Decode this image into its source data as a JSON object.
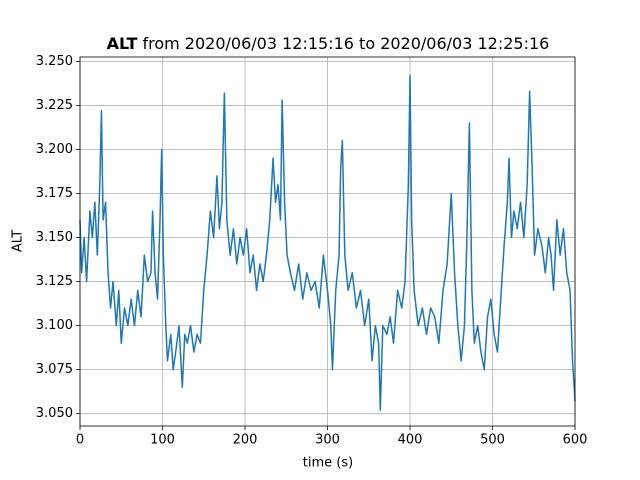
{
  "chart_data": {
    "type": "line",
    "title_bold": "ALT",
    "title": "from 2020/06/03 12:15:16 to 2020/06/03 12:25:16",
    "xlabel": "time (s)",
    "ylabel": "ALT",
    "x": [
      0,
      2,
      5,
      8,
      12,
      15,
      18,
      21,
      24,
      26,
      28,
      31,
      34,
      37,
      40,
      44,
      47,
      50,
      54,
      58,
      62,
      66,
      70,
      74,
      78,
      82,
      86,
      88,
      91,
      94,
      97,
      99,
      101,
      104,
      106,
      110,
      113,
      116,
      120,
      124,
      127,
      130,
      134,
      138,
      142,
      146,
      150,
      154,
      158,
      162,
      166,
      169,
      172,
      175,
      178,
      182,
      186,
      190,
      194,
      198,
      202,
      206,
      210,
      214,
      218,
      222,
      226,
      230,
      234,
      237,
      240,
      243,
      245,
      248,
      251,
      255,
      260,
      265,
      270,
      275,
      280,
      285,
      290,
      295,
      300,
      304,
      306,
      310,
      314,
      316,
      318,
      321,
      325,
      330,
      335,
      340,
      345,
      350,
      354,
      358,
      362,
      364,
      367,
      372,
      376,
      380,
      385,
      390,
      394,
      398,
      400,
      402,
      405,
      410,
      415,
      420,
      425,
      430,
      435,
      440,
      445,
      450,
      454,
      458,
      462,
      466,
      469,
      472,
      475,
      478,
      482,
      486,
      490,
      494,
      498,
      502,
      506,
      510,
      514,
      518,
      520,
      523,
      526,
      530,
      534,
      538,
      542,
      545,
      548,
      551,
      555,
      560,
      564,
      568,
      571,
      574,
      578,
      582,
      586,
      590,
      594,
      597,
      599,
      600
    ],
    "series": [
      {
        "name": "ALT",
        "color": "#1f77b4",
        "values": [
          3.16,
          3.13,
          3.15,
          3.125,
          3.165,
          3.15,
          3.17,
          3.14,
          3.18,
          3.222,
          3.16,
          3.17,
          3.13,
          3.11,
          3.125,
          3.1,
          3.12,
          3.09,
          3.11,
          3.1,
          3.115,
          3.1,
          3.12,
          3.105,
          3.14,
          3.125,
          3.13,
          3.165,
          3.13,
          3.115,
          3.16,
          3.2,
          3.14,
          3.1,
          3.08,
          3.095,
          3.075,
          3.085,
          3.1,
          3.065,
          3.095,
          3.09,
          3.1,
          3.085,
          3.095,
          3.09,
          3.12,
          3.14,
          3.165,
          3.15,
          3.185,
          3.155,
          3.17,
          3.232,
          3.16,
          3.14,
          3.155,
          3.135,
          3.15,
          3.14,
          3.155,
          3.13,
          3.14,
          3.12,
          3.135,
          3.125,
          3.14,
          3.16,
          3.195,
          3.17,
          3.18,
          3.16,
          3.228,
          3.17,
          3.14,
          3.13,
          3.12,
          3.135,
          3.115,
          3.13,
          3.12,
          3.125,
          3.11,
          3.14,
          3.12,
          3.1,
          3.075,
          3.12,
          3.14,
          3.19,
          3.205,
          3.14,
          3.12,
          3.13,
          3.11,
          3.12,
          3.1,
          3.115,
          3.08,
          3.1,
          3.09,
          3.052,
          3.1,
          3.095,
          3.105,
          3.09,
          3.12,
          3.11,
          3.125,
          3.18,
          3.242,
          3.16,
          3.12,
          3.1,
          3.11,
          3.095,
          3.11,
          3.105,
          3.09,
          3.12,
          3.135,
          3.175,
          3.13,
          3.1,
          3.08,
          3.1,
          3.15,
          3.215,
          3.12,
          3.09,
          3.1,
          3.085,
          3.075,
          3.105,
          3.115,
          3.095,
          3.085,
          3.115,
          3.145,
          3.17,
          3.195,
          3.15,
          3.165,
          3.155,
          3.17,
          3.15,
          3.18,
          3.233,
          3.19,
          3.14,
          3.155,
          3.145,
          3.13,
          3.15,
          3.14,
          3.12,
          3.16,
          3.14,
          3.155,
          3.13,
          3.12,
          3.08,
          3.065,
          3.057
        ]
      }
    ],
    "xlim": [
      0,
      600
    ],
    "xticks": [
      0,
      100,
      200,
      300,
      400,
      500,
      600
    ],
    "ylim": [
      3.043,
      3.2525
    ],
    "yticks": [
      {
        "value": 3.05,
        "label": "3.050"
      },
      {
        "value": 3.075,
        "label": "3.075"
      },
      {
        "value": 3.1,
        "label": "3.100"
      },
      {
        "value": 3.125,
        "label": "3.125"
      },
      {
        "value": 3.15,
        "label": "3.150"
      },
      {
        "value": 3.175,
        "label": "3.175"
      },
      {
        "value": 3.2,
        "label": "3.200"
      },
      {
        "value": 3.225,
        "label": "3.225"
      },
      {
        "value": 3.25,
        "label": "3.250"
      }
    ],
    "grid": true
  }
}
